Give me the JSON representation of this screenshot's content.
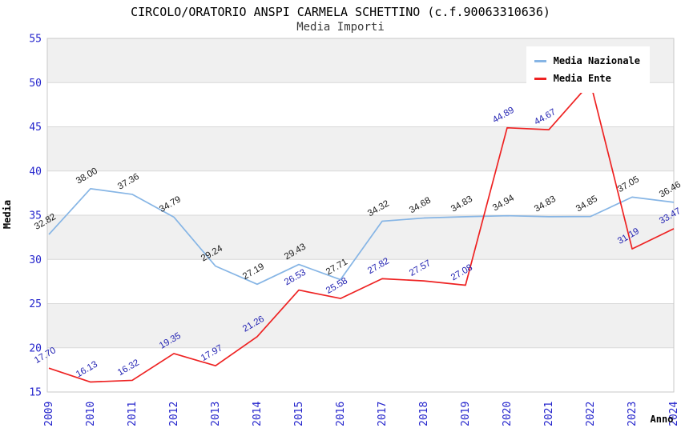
{
  "header": {
    "title": "CIRCOLO/ORATORIO ANSPI CARMELA SCHETTINO (c.f.90063310636)",
    "subtitle": "Media Importi"
  },
  "legend": {
    "items": [
      {
        "label": "Media Nazionale",
        "color": "#86b5e5"
      },
      {
        "label": "Media Ente",
        "color": "#ee2222"
      }
    ]
  },
  "axes": {
    "y_title": "Media",
    "x_title": "Anno",
    "y_ticks": [
      55,
      50,
      45,
      40,
      35,
      30,
      25,
      20,
      15
    ],
    "tick_color": "#2424cc",
    "grid_color": "#d9d9d9",
    "border_color": "#c8c8c8",
    "band_color": "#f0f0f0"
  },
  "chart_data": {
    "type": "line",
    "title": "CIRCOLO/ORATORIO ANSPI CARMELA SCHETTINO (c.f.90063310636)",
    "subtitle": "Media Importi",
    "xlabel": "Anno",
    "ylabel": "Media",
    "ylim": [
      15,
      55
    ],
    "ytick_step": 5,
    "grid": true,
    "legend_position": "top-right",
    "x": [
      "2009",
      "2010",
      "2011",
      "2012",
      "2013",
      "2014",
      "2015",
      "2016",
      "2017",
      "2018",
      "2019",
      "2020",
      "2021",
      "2022",
      "2023",
      "2024"
    ],
    "series": [
      {
        "name": "Media Nazionale",
        "color": "#86b5e5",
        "label_color": "#1a1a1a",
        "values": [
          32.82,
          38.0,
          37.36,
          34.79,
          29.24,
          27.19,
          29.43,
          27.71,
          34.32,
          34.68,
          34.83,
          34.94,
          34.83,
          34.85,
          37.05,
          36.46
        ],
        "labels": [
          "32.82",
          "38.00",
          "37.36",
          "34.79",
          "29.24",
          "27.19",
          "29.43",
          "27.71",
          "34.32",
          "34.68",
          "34.83",
          "34.94",
          "34.83",
          "34.85",
          "37.05",
          "36.46"
        ]
      },
      {
        "name": "Media Ente",
        "color": "#ee2222",
        "label_color": "#2222b2",
        "values": [
          17.7,
          16.13,
          16.32,
          19.35,
          17.97,
          21.26,
          26.53,
          25.58,
          27.82,
          27.57,
          27.08,
          44.89,
          44.67,
          50.0,
          31.19,
          33.47
        ],
        "labels": [
          "17.70",
          "16.13",
          "16.32",
          "19.35",
          "17.97",
          "21.26",
          "26.53",
          "25.58",
          "27.82",
          "27.57",
          "27.08",
          "44.89",
          "44.67",
          "",
          "31.19",
          "33.47"
        ]
      }
    ]
  }
}
